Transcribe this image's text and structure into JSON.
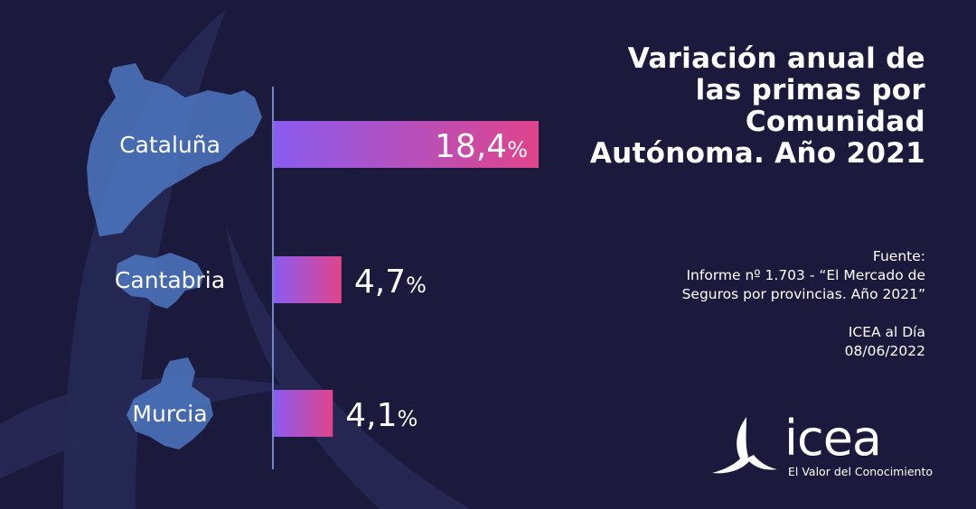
{
  "header": {
    "title_lines": [
      "Variación anual de",
      "las primas por",
      "Comunidad",
      "Autónoma. Año 2021"
    ]
  },
  "source": {
    "label": "Fuente:",
    "line1": "Informe nº 1.703 - “El Mercado de",
    "line2": "Seguros por provincias. Año 2021”",
    "publication": "ICEA al Día",
    "date": "08/06/2022"
  },
  "logo": {
    "name": "icea",
    "tagline": "El Valor del Conocimiento"
  },
  "colors": {
    "background": "#1c1a3c",
    "bar_start": "#8a5cf0",
    "bar_end": "#e0448a",
    "map_fill": "#4e78c2",
    "axis": "#6f86c8"
  },
  "chart_data": {
    "type": "bar",
    "orientation": "horizontal",
    "categories": [
      "Cataluña",
      "Cantabria",
      "Murcia"
    ],
    "values": [
      18.4,
      4.7,
      4.1
    ],
    "value_labels": [
      "18,4",
      "4,7",
      "4,1"
    ],
    "unit": "%",
    "xlim": [
      0,
      18.4
    ]
  }
}
